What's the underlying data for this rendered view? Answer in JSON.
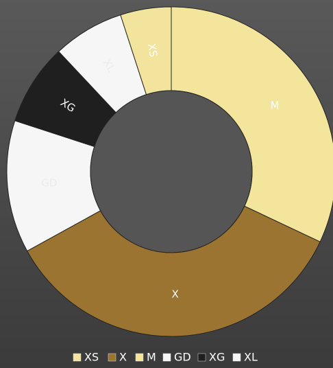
{
  "chart_data": {
    "type": "donut",
    "direction": "clockwise",
    "categories": [
      "M",
      "X",
      "GD",
      "XG",
      "XL",
      "XS"
    ],
    "values": [
      32,
      35,
      13,
      8,
      7,
      5
    ],
    "colors": [
      "#f4e59c",
      "#9b7431",
      "#f6f6f6",
      "#1f1f1f",
      "#f6f6f6",
      "#f3e49d"
    ],
    "legend": [
      "XS",
      "X",
      "M",
      "GD",
      "XG",
      "XL"
    ]
  }
}
